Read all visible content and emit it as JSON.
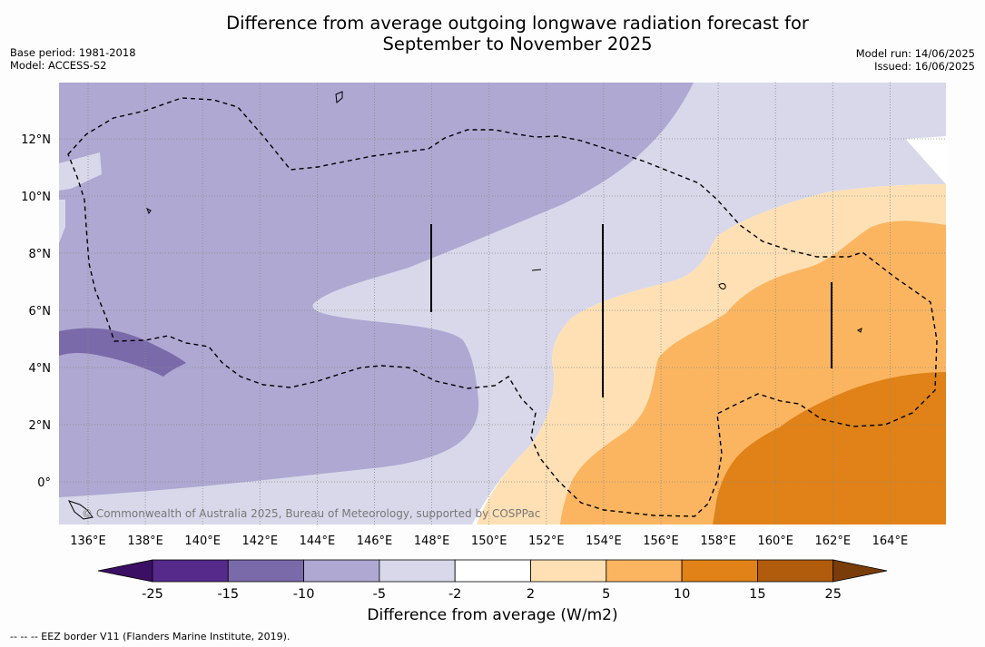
{
  "title": {
    "line1": "Difference from average outgoing longwave radiation forecast for",
    "line2": "September to November 2025"
  },
  "meta_left": {
    "base_period": "Base period: 1981-2018",
    "model": "Model: ACCESS-S2"
  },
  "meta_right": {
    "model_run": "Model run: 14/06/2025",
    "issued": "Issued: 16/06/2025"
  },
  "map": {
    "lon_labels": [
      "136°E",
      "138°E",
      "140°E",
      "142°E",
      "144°E",
      "146°E",
      "148°E",
      "150°E",
      "152°E",
      "154°E",
      "156°E",
      "158°E",
      "160°E",
      "162°E",
      "164°E"
    ],
    "lat_labels": [
      "12°N",
      "10°N",
      "8°N",
      "6°N",
      "4°N",
      "2°N",
      "0°"
    ],
    "copyright": "© Commonwealth of Australia 2025, Bureau of Meteorology, supported by COSPPac"
  },
  "colorbar": {
    "ticks": [
      "-25",
      "-15",
      "-10",
      "-5",
      "-2",
      "2",
      "5",
      "10",
      "15",
      "25"
    ],
    "colors": [
      "#3b0f63",
      "#562a8a",
      "#7a6aaa",
      "#afa8d2",
      "#d8d8ea",
      "#ffffff",
      "#fee0b4",
      "#fbb560",
      "#e08217",
      "#b15b0d",
      "#7a3c08"
    ],
    "label": "Difference from average (W/m2)"
  },
  "footnote": "-- -- -- EEZ border V11 (Flanders Marine Institute, 2019)."
}
